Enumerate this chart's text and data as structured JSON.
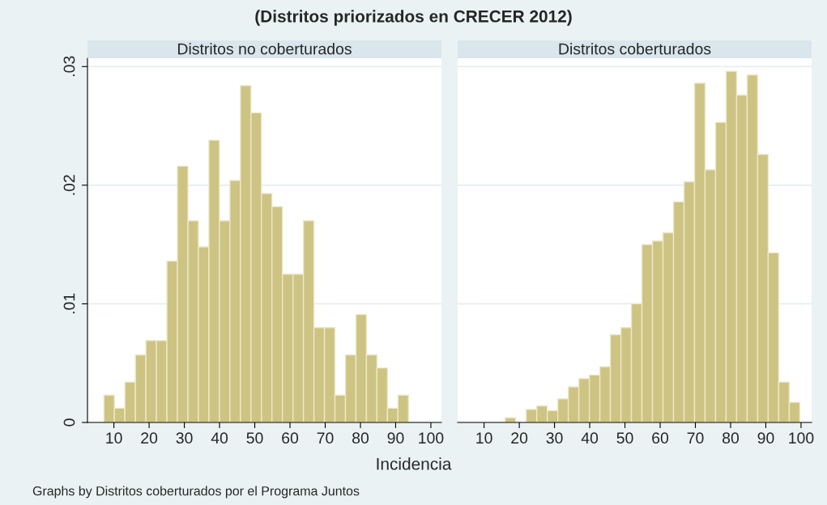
{
  "chart_data": [
    {
      "type": "histogram",
      "title": "Distritos no coberturados",
      "xlabel": "Incidencia",
      "annotations": [
        "(Distritos priorizados en CRECER 2012)",
        "Graphs by Distritos coberturados por el Programa Juntos"
      ],
      "bins": [
        7.16,
        10.14,
        13.12,
        16.11,
        19.09,
        22.07,
        25.05,
        28.03,
        31.02,
        34.0,
        36.98,
        39.96,
        42.94,
        45.93,
        48.91,
        51.89,
        54.87,
        57.85,
        60.84,
        63.82,
        66.8,
        69.78,
        72.76,
        75.75,
        78.73,
        81.71,
        84.69,
        87.67,
        90.66,
        93.64
      ],
      "values": [
        0.0023,
        0.0012,
        0.0034,
        0.0057,
        0.0069,
        0.0069,
        0.0136,
        0.0216,
        0.017,
        0.0148,
        0.0238,
        0.017,
        0.0204,
        0.0284,
        0.0261,
        0.0193,
        0.0182,
        0.0125,
        0.0125,
        0.017,
        0.008,
        0.008,
        0.0023,
        0.0057,
        0.0091,
        0.0057,
        0.0046,
        0.0012,
        0.0023
      ],
      "color": "#cdc383",
      "xlim": [
        2.5,
        103
      ],
      "ylim": [
        0,
        0.0307
      ],
      "xticks": [
        10,
        20,
        30,
        40,
        50,
        60,
        70,
        80,
        90,
        100
      ],
      "yticks": [
        {
          "value": 0,
          "label": "0"
        },
        {
          "value": 0.01,
          "label": ".01"
        },
        {
          "value": 0.02,
          "label": ".02"
        },
        {
          "value": 0.03,
          "label": ".03"
        }
      ],
      "grid": "y"
    },
    {
      "type": "histogram",
      "title": "Distritos coberturados",
      "bins": [
        16.0,
        18.99,
        21.97,
        24.96,
        27.95,
        30.94,
        33.92,
        36.91,
        39.9,
        42.88,
        45.87,
        48.86,
        51.84,
        54.83,
        57.82,
        60.81,
        63.79,
        66.78,
        69.77,
        72.75,
        75.74,
        78.73,
        81.72,
        84.7,
        87.69,
        90.68,
        93.66,
        96.65,
        99.64
      ],
      "values": [
        0.0004,
        0,
        0.0011,
        0.0014,
        0.001,
        0.002,
        0.003,
        0.0037,
        0.004,
        0.0047,
        0.0074,
        0.008,
        0.01,
        0.015,
        0.0153,
        0.016,
        0.0186,
        0.0203,
        0.0286,
        0.0213,
        0.0253,
        0.0296,
        0.0276,
        0.0293,
        0.0226,
        0.0143,
        0.0034,
        0.0017
      ],
      "color": "#cdc383",
      "xlim": [
        2.5,
        103
      ],
      "ylim": [
        0,
        0.0307
      ],
      "xticks": [
        10,
        20,
        30,
        40,
        50,
        60,
        70,
        80,
        90,
        100
      ],
      "yticks": [
        0,
        0.01,
        0.02,
        0.03
      ],
      "grid": "y",
      "tick_labels": "x"
    }
  ]
}
